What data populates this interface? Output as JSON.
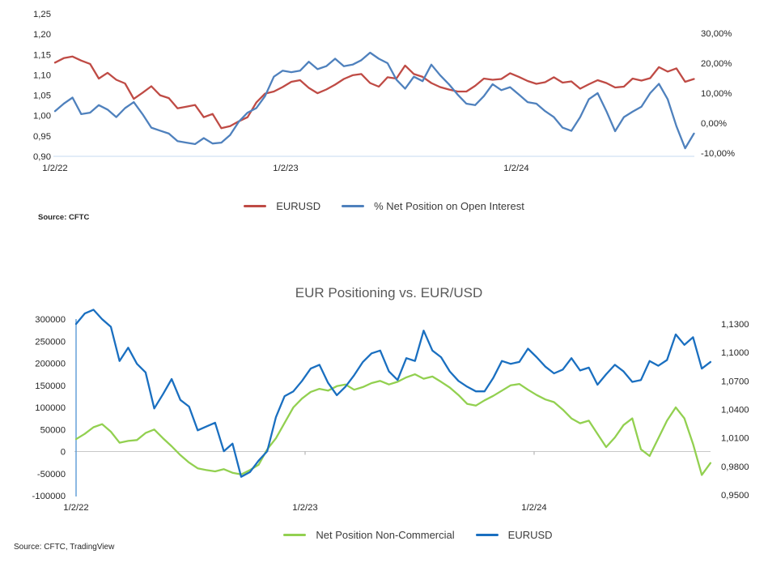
{
  "page": {
    "background": "#ffffff"
  },
  "chart_data": [
    {
      "type": "line",
      "title": "",
      "source": "Source: CFTC",
      "x_tick_labels": [
        "1/2/22",
        "1/2/23",
        "1/2/24"
      ],
      "x_tick_positions_years": [
        0,
        1,
        2
      ],
      "x_end_years": 2.77,
      "left_axis": {
        "range": [
          0.9,
          1.25
        ],
        "tick_values": [
          1.25,
          1.2,
          1.15,
          1.1,
          1.05,
          1.0,
          0.95,
          0.9
        ],
        "tick_labels": [
          "1,25",
          "1,20",
          "1,15",
          "1,10",
          "1,05",
          "1,00",
          "0,95",
          "0,90"
        ]
      },
      "right_axis": {
        "range": [
          -10,
          30
        ],
        "tick_values": [
          30,
          20,
          10,
          0,
          -10
        ],
        "tick_labels": [
          "30,00%",
          "20,00%",
          "10,00%",
          "0,00%",
          "-10,00%"
        ]
      },
      "grid": "baseline-only",
      "legend_position": "bottom",
      "series": [
        {
          "name": "EURUSD",
          "color": "#bf4b45",
          "axis": "left",
          "values": [
            1.13,
            1.141,
            1.145,
            1.135,
            1.127,
            1.091,
            1.105,
            1.088,
            1.079,
            1.041,
            1.056,
            1.072,
            1.05,
            1.043,
            1.018,
            1.022,
            1.026,
            0.996,
            1.004,
            0.969,
            0.974,
            0.986,
            0.996,
            1.032,
            1.054,
            1.059,
            1.07,
            1.083,
            1.087,
            1.068,
            1.055,
            1.064,
            1.076,
            1.09,
            1.099,
            1.102,
            1.08,
            1.071,
            1.094,
            1.091,
            1.123,
            1.102,
            1.095,
            1.08,
            1.07,
            1.064,
            1.059,
            1.059,
            1.073,
            1.091,
            1.088,
            1.09,
            1.104,
            1.095,
            1.085,
            1.078,
            1.082,
            1.094,
            1.081,
            1.084,
            1.066,
            1.077,
            1.087,
            1.08,
            1.069,
            1.071,
            1.091,
            1.086,
            1.092,
            1.119,
            1.108,
            1.116,
            1.083,
            1.09
          ]
        },
        {
          "name": "% Net Position on Open Interest",
          "color": "#4f81bd",
          "axis": "right",
          "values": [
            4.0,
            6.5,
            8.5,
            3.0,
            3.5,
            6.0,
            4.5,
            2.0,
            5.0,
            7.0,
            3.0,
            -1.5,
            -2.5,
            -3.5,
            -6.0,
            -6.5,
            -7.0,
            -5.0,
            -6.8,
            -6.5,
            -4.0,
            0.5,
            3.5,
            5.0,
            9.0,
            15.5,
            17.5,
            17.0,
            17.5,
            20.5,
            18.0,
            19.0,
            21.5,
            19.0,
            19.5,
            21.0,
            23.5,
            21.5,
            20.0,
            14.5,
            11.5,
            15.5,
            14.0,
            19.5,
            16.0,
            13.0,
            9.5,
            6.5,
            6.0,
            9.0,
            13.0,
            11.0,
            12.0,
            9.5,
            7.0,
            6.5,
            4.0,
            2.0,
            -1.5,
            -2.6,
            2.0,
            8.0,
            10.0,
            4.0,
            -2.7,
            2.0,
            3.8,
            5.5,
            10.0,
            13.1,
            8.0,
            -1.0,
            -8.4,
            -3.5
          ]
        }
      ]
    },
    {
      "type": "line",
      "title": "EUR Positioning vs. EUR/USD",
      "source": "Source: CFTC, TradingView",
      "x_tick_labels": [
        "1/2/22",
        "1/2/23",
        "1/2/24"
      ],
      "x_tick_positions_years": [
        0,
        1,
        2
      ],
      "x_end_years": 2.77,
      "left_axis": {
        "range": [
          -100000,
          300000
        ],
        "tick_values": [
          300000,
          250000,
          200000,
          150000,
          100000,
          50000,
          0,
          -50000,
          -100000
        ],
        "tick_labels": [
          "300000",
          "250000",
          "200000",
          "150000",
          "100000",
          "50000",
          "0",
          "-50000",
          "-100000"
        ]
      },
      "right_axis": {
        "range": [
          0.95,
          1.13
        ],
        "tick_values": [
          1.13,
          1.1,
          1.07,
          1.04,
          1.01,
          0.98,
          0.95
        ],
        "tick_labels": [
          "1,1300",
          "1,1000",
          "1,0700",
          "1,0400",
          "1,0100",
          "0,9800",
          "0,9500"
        ]
      },
      "grid": "zero-line-only",
      "legend_position": "bottom",
      "series": [
        {
          "name": "Net Position Non-Commercial",
          "color": "#92d050",
          "axis": "left",
          "values": [
            28000,
            40000,
            55000,
            62000,
            45000,
            20000,
            24000,
            26000,
            42000,
            50000,
            30000,
            12000,
            -8000,
            -25000,
            -38000,
            -42000,
            -45000,
            -40000,
            -48000,
            -52000,
            -42000,
            -30000,
            5000,
            30000,
            65000,
            100000,
            120000,
            135000,
            142000,
            138000,
            148000,
            152000,
            140000,
            146000,
            155000,
            160000,
            152000,
            158000,
            168000,
            175000,
            165000,
            170000,
            158000,
            145000,
            128000,
            108000,
            104000,
            116000,
            126000,
            138000,
            150000,
            153000,
            140000,
            128000,
            118000,
            112000,
            95000,
            75000,
            64000,
            70000,
            40000,
            10000,
            32000,
            60000,
            75000,
            5000,
            -10000,
            30000,
            70000,
            100000,
            75000,
            17000,
            -53000,
            -26000
          ]
        },
        {
          "name": "EURUSD",
          "color": "#1a6fc0",
          "axis": "right",
          "values": [
            1.13,
            1.141,
            1.145,
            1.135,
            1.127,
            1.091,
            1.105,
            1.088,
            1.079,
            1.041,
            1.056,
            1.072,
            1.05,
            1.043,
            1.018,
            1.022,
            1.026,
            0.996,
            1.004,
            0.969,
            0.974,
            0.986,
            0.996,
            1.032,
            1.054,
            1.059,
            1.07,
            1.083,
            1.087,
            1.068,
            1.055,
            1.064,
            1.076,
            1.09,
            1.099,
            1.102,
            1.08,
            1.071,
            1.094,
            1.091,
            1.123,
            1.102,
            1.095,
            1.08,
            1.07,
            1.064,
            1.059,
            1.059,
            1.073,
            1.091,
            1.088,
            1.09,
            1.104,
            1.095,
            1.085,
            1.078,
            1.082,
            1.094,
            1.081,
            1.084,
            1.066,
            1.077,
            1.087,
            1.08,
            1.069,
            1.071,
            1.091,
            1.086,
            1.092,
            1.119,
            1.108,
            1.116,
            1.083,
            1.09
          ]
        }
      ]
    }
  ]
}
